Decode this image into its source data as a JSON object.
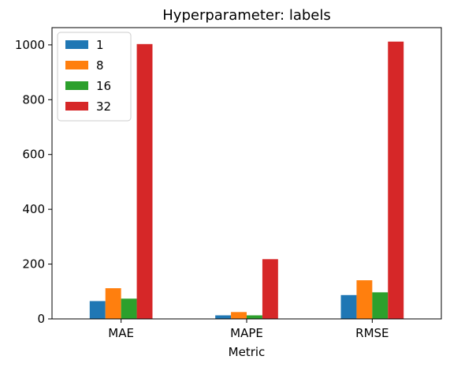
{
  "chart_data": {
    "type": "bar",
    "title": "Hyperparameter: labels",
    "xlabel": "Metric",
    "ylabel": "",
    "categories": [
      "MAE",
      "MAPE",
      "RMSE"
    ],
    "series": [
      {
        "name": "1",
        "color": "#1f77b4",
        "values": [
          65,
          13,
          87
        ]
      },
      {
        "name": "8",
        "color": "#ff7f0e",
        "values": [
          112,
          25,
          141
        ]
      },
      {
        "name": "16",
        "color": "#2ca02c",
        "values": [
          74,
          13,
          97
        ]
      },
      {
        "name": "32",
        "color": "#d62728",
        "values": [
          1003,
          218,
          1012
        ]
      }
    ],
    "ylim": [
      0,
      1063
    ],
    "yticks": [
      0,
      200,
      400,
      600,
      800,
      1000
    ],
    "grid": false,
    "legend_position": "top-left"
  }
}
